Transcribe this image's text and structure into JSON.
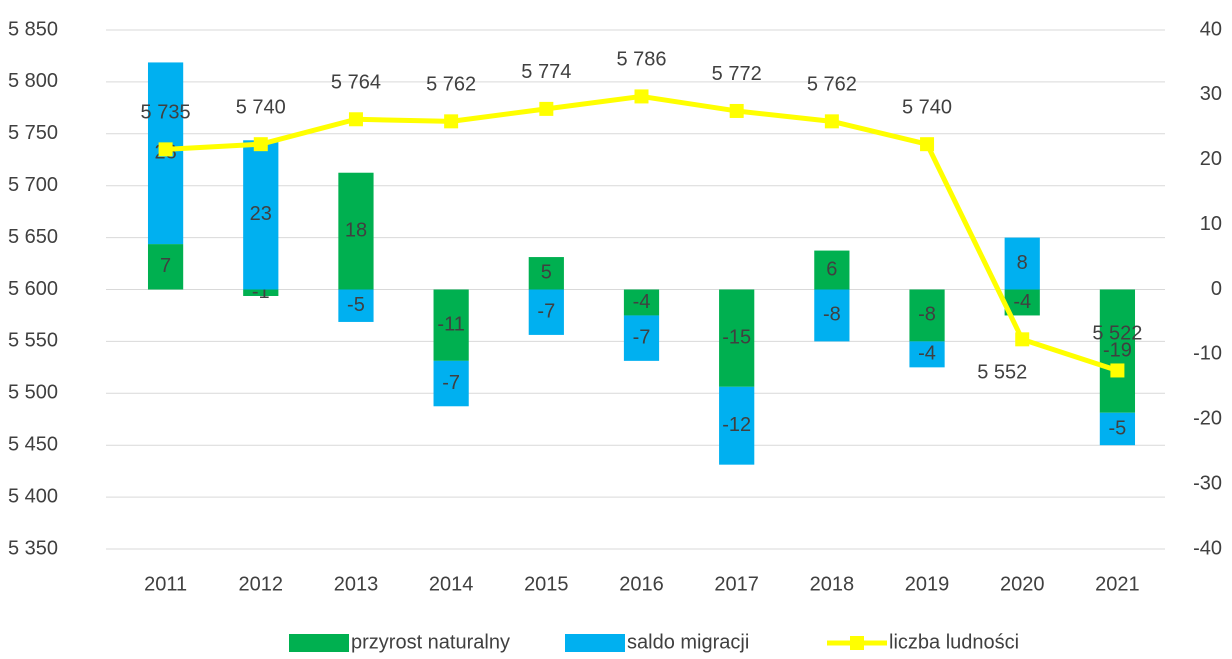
{
  "chart_data": {
    "type": "bar-line",
    "categories": [
      "2011",
      "2012",
      "2013",
      "2014",
      "2015",
      "2016",
      "2017",
      "2018",
      "2019",
      "2020",
      "2021"
    ],
    "series": [
      {
        "name": "przyrost naturalny",
        "type": "bar",
        "axis": "y2",
        "color": "#00b050",
        "values": [
          7,
          -1,
          18,
          -11,
          5,
          -4,
          -15,
          6,
          -8,
          -4,
          -19
        ]
      },
      {
        "name": "saldo migracji",
        "type": "bar",
        "axis": "y2",
        "color": "#00b0f0",
        "values": [
          28,
          23,
          -5,
          -7,
          -7,
          -7,
          -12,
          -8,
          -4,
          8,
          -5
        ]
      },
      {
        "name": "liczba ludności",
        "type": "line",
        "axis": "y",
        "color": "#ffff00",
        "values": [
          5735,
          5740,
          5764,
          5762,
          5774,
          5786,
          5772,
          5762,
          5740,
          5552,
          5522
        ],
        "value_labels": [
          "5 735",
          "5 740",
          "5 764",
          "5 762",
          "5 774",
          "5 786",
          "5 772",
          "5 762",
          "5 740",
          "5 552",
          "5 522"
        ]
      }
    ],
    "ylim": [
      5350,
      5850
    ],
    "yticks": [
      {
        "value": 5350,
        "label": "5 350"
      },
      {
        "value": 5400,
        "label": "5 400"
      },
      {
        "value": 5450,
        "label": "5 450"
      },
      {
        "value": 5500,
        "label": "5 500"
      },
      {
        "value": 5550,
        "label": "5 550"
      },
      {
        "value": 5600,
        "label": "5 600"
      },
      {
        "value": 5650,
        "label": "5 650"
      },
      {
        "value": 5700,
        "label": "5 700"
      },
      {
        "value": 5750,
        "label": "5 750"
      },
      {
        "value": 5800,
        "label": "5 800"
      },
      {
        "value": 5850,
        "label": "5 850"
      }
    ],
    "y2lim": [
      -40,
      40
    ],
    "y2ticks": [
      -40,
      -30,
      -20,
      -10,
      0,
      10,
      20,
      30,
      40
    ],
    "grid": true,
    "legend": "bottom"
  }
}
